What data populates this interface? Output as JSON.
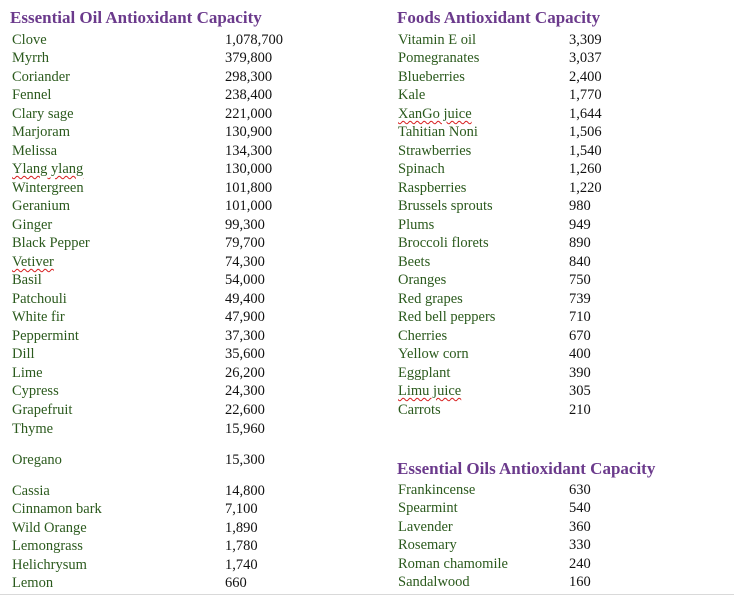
{
  "colors": {
    "header": "#6b3a8c",
    "item_name": "#2b5a1d",
    "value": "#111111",
    "spellcheck": "#d61d1d"
  },
  "essential_oils": {
    "title": "Essential Oil Antioxidant Capacity",
    "items": [
      {
        "name": "Clove",
        "value": "1,078,700"
      },
      {
        "name": "Myrrh",
        "value": "379,800"
      },
      {
        "name": "Coriander",
        "value": "298,300"
      },
      {
        "name": "Fennel",
        "value": "238,400"
      },
      {
        "name": "Clary sage",
        "value": "221,000"
      },
      {
        "name": "Marjoram",
        "value": "130,900"
      },
      {
        "name": "Melissa",
        "value": "134,300"
      },
      {
        "name": "Ylang ylang",
        "value": "130,000"
      },
      {
        "name": "Wintergreen",
        "value": "101,800"
      },
      {
        "name": "Geranium",
        "value": "101,000"
      },
      {
        "name": "Ginger",
        "value": "99,300"
      },
      {
        "name": "Black Pepper",
        "value": "79,700"
      },
      {
        "name": "Vetiver",
        "value": "74,300"
      },
      {
        "name": "Basil",
        "value": "54,000"
      },
      {
        "name": "Patchouli",
        "value": "49,400"
      },
      {
        "name": "White fir",
        "value": "47,900"
      },
      {
        "name": "Peppermint",
        "value": "37,300"
      },
      {
        "name": "Dill",
        "value": "35,600"
      },
      {
        "name": "Lime",
        "value": "26,200"
      },
      {
        "name": "Cypress",
        "value": "24,300"
      },
      {
        "name": "Grapefruit",
        "value": "22,600"
      },
      {
        "name": "Thyme",
        "value": "15,960"
      },
      {
        "name": "Oregano",
        "value": "15,300"
      },
      {
        "name": "Cassia",
        "value": "14,800"
      },
      {
        "name": "Cinnamon bark",
        "value": "7,100"
      },
      {
        "name": "Wild Orange",
        "value": "1,890"
      },
      {
        "name": "Lemongrass",
        "value": "1,780"
      },
      {
        "name": "Helichrysum",
        "value": "1,740"
      },
      {
        "name": "Lemon",
        "value": "660"
      }
    ]
  },
  "foods": {
    "title": "Foods Antioxidant Capacity",
    "items": [
      {
        "name": "Vitamin E oil",
        "value": "3,309"
      },
      {
        "name": "Pomegranates",
        "value": "3,037"
      },
      {
        "name": "Blueberries",
        "value": "2,400"
      },
      {
        "name": "Kale",
        "value": "1,770"
      },
      {
        "name": "XanGo juice",
        "value": "1,644"
      },
      {
        "name": "Tahitian Noni",
        "value": "1,506"
      },
      {
        "name": "Strawberries",
        "value": "1,540"
      },
      {
        "name": "Spinach",
        "value": "1,260"
      },
      {
        "name": "Raspberries",
        "value": "1,220"
      },
      {
        "name": "Brussels sprouts",
        "value": "980"
      },
      {
        "name": "Plums",
        "value": "949"
      },
      {
        "name": "Broccoli florets",
        "value": "890"
      },
      {
        "name": "Beets",
        "value": "840"
      },
      {
        "name": "Oranges",
        "value": "750"
      },
      {
        "name": "Red grapes",
        "value": "739"
      },
      {
        "name": "Red bell peppers",
        "value": "710"
      },
      {
        "name": "Cherries",
        "value": "670"
      },
      {
        "name": "Yellow corn",
        "value": "400"
      },
      {
        "name": "Eggplant",
        "value": "390"
      },
      {
        "name": "Limu juice",
        "value": "305"
      },
      {
        "name": "Carrots",
        "value": "210"
      }
    ]
  },
  "essential_oils_2": {
    "title": "Essential Oils Antioxidant Capacity",
    "items": [
      {
        "name": "Frankincense",
        "value": "630"
      },
      {
        "name": "Spearmint",
        "value": "540"
      },
      {
        "name": "Lavender",
        "value": "360"
      },
      {
        "name": "Rosemary",
        "value": "330"
      },
      {
        "name": "Roman chamomile",
        "value": "240"
      },
      {
        "name": "Sandalwood",
        "value": "160"
      }
    ]
  }
}
